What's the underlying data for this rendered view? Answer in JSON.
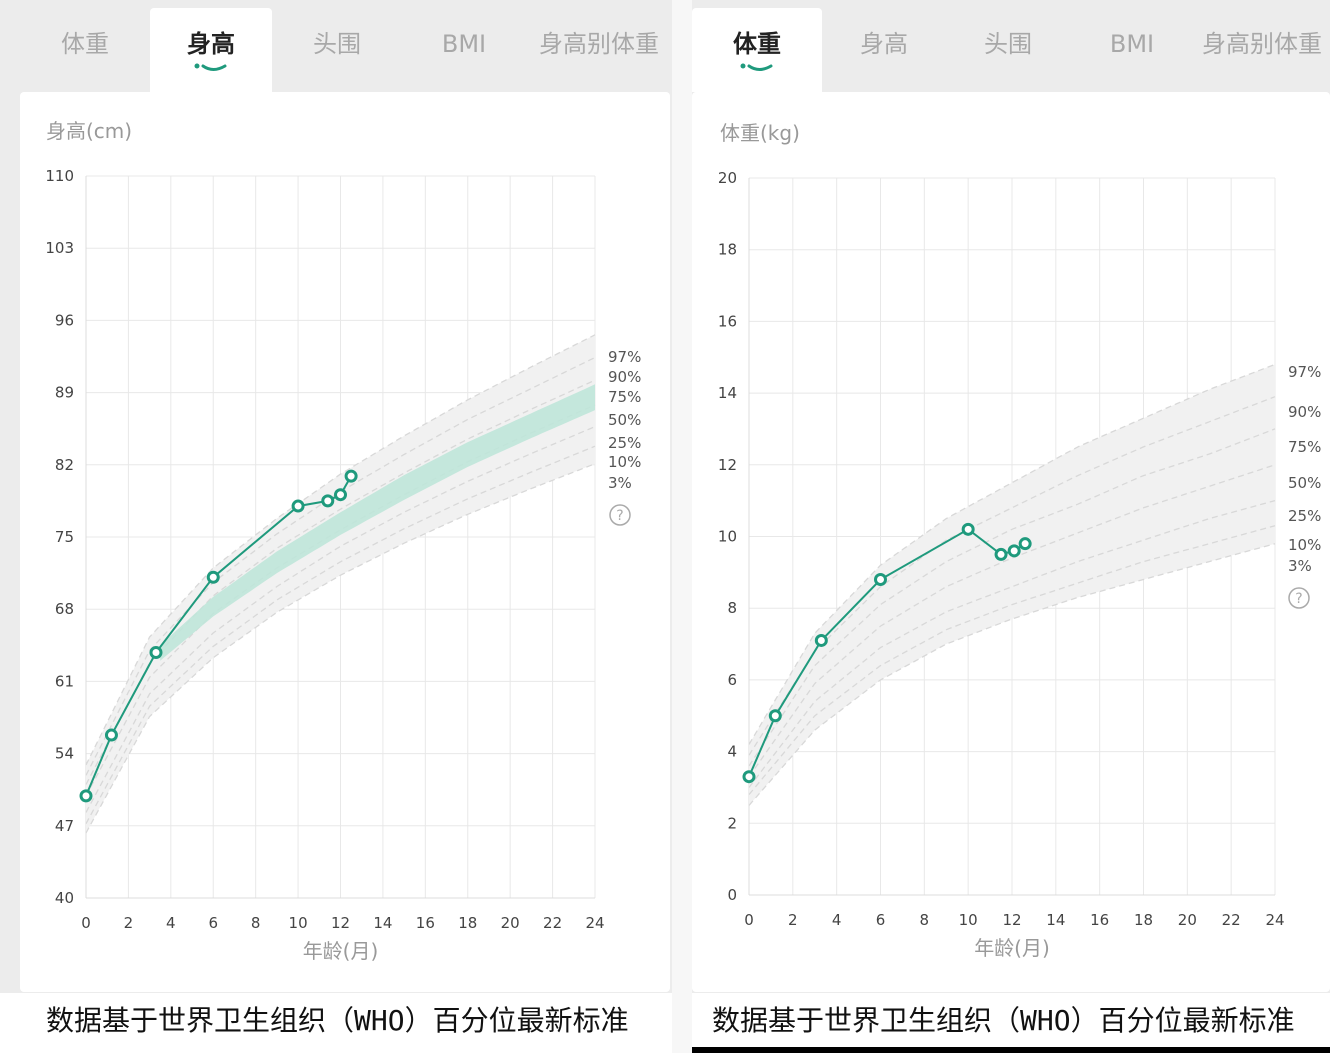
{
  "tabs": [
    "体重",
    "身高",
    "头围",
    "BMI",
    "身高别体重"
  ],
  "left": {
    "active_tab": 1,
    "footer": "数据基于世界卫生组织（WHO）百分位最新标准"
  },
  "right": {
    "active_tab": 0,
    "footer": "数据基于世界卫生组织（WHO）百分位最新标准"
  },
  "colors": {
    "accent": "#1f9a7d",
    "band": "#bfe6d9",
    "percentile_line": "#d8d8d8",
    "grid": "#e8e8e8"
  },
  "help_icon": "question-circle-icon",
  "chart_data": [
    {
      "type": "line",
      "ylabel": "身高(cm)",
      "xlabel": "年龄(月)",
      "xlim": [
        0,
        24
      ],
      "ylim": [
        40,
        110
      ],
      "xticks": [
        0,
        2,
        4,
        6,
        8,
        10,
        12,
        14,
        16,
        18,
        20,
        22,
        24
      ],
      "yticks": [
        40,
        47,
        54,
        61,
        68,
        75,
        82,
        89,
        96,
        103,
        110
      ],
      "grid": true,
      "percentile_labels": [
        "97%",
        "90%",
        "75%",
        "50%",
        "25%",
        "10%",
        "3%"
      ],
      "percentiles": [
        {
          "name": "3%",
          "x": [
            0,
            3,
            6,
            9,
            12,
            15,
            18,
            21,
            24
          ],
          "values": [
            46.3,
            57.6,
            63.3,
            67.7,
            71.3,
            74.4,
            77.2,
            79.7,
            82.1
          ]
        },
        {
          "name": "10%",
          "x": [
            0,
            3,
            6,
            9,
            12,
            15,
            18,
            21,
            24
          ],
          "values": [
            47.2,
            58.6,
            64.4,
            68.9,
            72.6,
            75.8,
            78.7,
            81.3,
            83.8
          ]
        },
        {
          "name": "25%",
          "x": [
            0,
            3,
            6,
            9,
            12,
            15,
            18,
            21,
            24
          ],
          "values": [
            48.3,
            59.8,
            65.7,
            70.2,
            74.1,
            77.4,
            80.4,
            83.1,
            85.7
          ]
        },
        {
          "name": "50%",
          "x": [
            0,
            3,
            6,
            9,
            12,
            15,
            18,
            21,
            24
          ],
          "values": [
            49.9,
            61.4,
            67.6,
            72.0,
            75.7,
            79.1,
            82.3,
            85.1,
            87.8
          ]
        },
        {
          "name": "75%",
          "x": [
            0,
            3,
            6,
            9,
            12,
            15,
            18,
            21,
            24
          ],
          "values": [
            51.0,
            62.8,
            69.3,
            73.9,
            77.7,
            81.2,
            84.5,
            87.4,
            90.2
          ]
        },
        {
          "name": "90%",
          "x": [
            0,
            3,
            6,
            9,
            12,
            15,
            18,
            21,
            24
          ],
          "values": [
            51.9,
            64.0,
            70.6,
            75.3,
            79.4,
            83.0,
            86.4,
            89.4,
            92.4
          ]
        },
        {
          "name": "97%",
          "x": [
            0,
            3,
            6,
            9,
            12,
            15,
            18,
            21,
            24
          ],
          "values": [
            52.9,
            65.3,
            72.0,
            76.8,
            81.1,
            84.8,
            88.3,
            91.5,
            94.6
          ]
        }
      ],
      "highlight_band": {
        "x": [
          3.5,
          6,
          9,
          12,
          15,
          18,
          21,
          24
        ],
        "lower": [
          63.0,
          67.3,
          71.5,
          75.2,
          78.6,
          81.8,
          84.6,
          87.3
        ],
        "upper": [
          64.5,
          69.2,
          73.6,
          77.4,
          81.0,
          84.2,
          87.0,
          89.8
        ]
      },
      "series": [
        {
          "x": [
            0,
            1.2,
            3.3,
            6.0,
            10.0,
            11.4,
            12.0,
            12.5
          ],
          "values": [
            49.9,
            55.8,
            63.8,
            71.1,
            78.0,
            78.5,
            79.1,
            80.9
          ]
        }
      ]
    },
    {
      "type": "line",
      "ylabel": "体重(kg)",
      "xlabel": "年龄(月)",
      "xlim": [
        0,
        24
      ],
      "ylim": [
        0,
        20
      ],
      "xticks": [
        0,
        2,
        4,
        6,
        8,
        10,
        12,
        14,
        16,
        18,
        20,
        22,
        24
      ],
      "yticks": [
        0,
        2,
        4,
        6,
        8,
        10,
        12,
        14,
        16,
        18,
        20
      ],
      "grid": true,
      "percentile_labels": [
        "97%",
        "90%",
        "75%",
        "50%",
        "25%",
        "10%",
        "3%"
      ],
      "percentiles": [
        {
          "name": "3%",
          "x": [
            0,
            3,
            6,
            9,
            12,
            15,
            18,
            21,
            24
          ],
          "values": [
            2.5,
            4.6,
            6.0,
            7.0,
            7.7,
            8.3,
            8.8,
            9.3,
            9.8
          ]
        },
        {
          "name": "10%",
          "x": [
            0,
            3,
            6,
            9,
            12,
            15,
            18,
            21,
            24
          ],
          "values": [
            2.8,
            5.0,
            6.4,
            7.4,
            8.1,
            8.7,
            9.3,
            9.8,
            10.3
          ]
        },
        {
          "name": "25%",
          "x": [
            0,
            3,
            6,
            9,
            12,
            15,
            18,
            21,
            24
          ],
          "values": [
            3.0,
            5.4,
            6.9,
            7.9,
            8.6,
            9.3,
            9.9,
            10.5,
            11.0
          ]
        },
        {
          "name": "50%",
          "x": [
            0,
            3,
            6,
            9,
            12,
            15,
            18,
            21,
            24
          ],
          "values": [
            3.3,
            5.9,
            7.5,
            8.6,
            9.4,
            10.1,
            10.8,
            11.4,
            12.0
          ]
        },
        {
          "name": "75%",
          "x": [
            0,
            3,
            6,
            9,
            12,
            15,
            18,
            21,
            24
          ],
          "values": [
            3.6,
            6.4,
            8.1,
            9.3,
            10.2,
            10.9,
            11.7,
            12.3,
            13.0
          ]
        },
        {
          "name": "90%",
          "x": [
            0,
            3,
            6,
            9,
            12,
            15,
            18,
            21,
            24
          ],
          "values": [
            3.9,
            6.8,
            8.6,
            9.9,
            10.8,
            11.7,
            12.5,
            13.2,
            13.9
          ]
        },
        {
          "name": "97%",
          "x": [
            0,
            3,
            6,
            9,
            12,
            15,
            18,
            21,
            24
          ],
          "values": [
            4.2,
            7.3,
            9.2,
            10.5,
            11.5,
            12.5,
            13.3,
            14.1,
            14.8
          ]
        }
      ],
      "series": [
        {
          "x": [
            0,
            1.2,
            3.3,
            6.0,
            10.0,
            11.5,
            12.1,
            12.6
          ],
          "values": [
            3.3,
            5.0,
            7.1,
            8.8,
            10.2,
            9.5,
            9.6,
            9.8
          ]
        }
      ]
    }
  ]
}
